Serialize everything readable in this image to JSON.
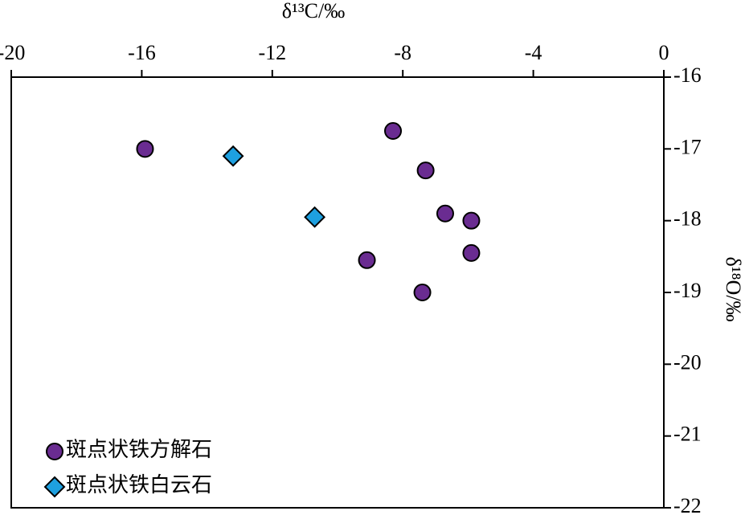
{
  "chart_data": {
    "type": "scatter",
    "x_label": "δ¹³C/‰",
    "y_label": "δ¹⁸O/‰",
    "xlim": [
      -20,
      0
    ],
    "xticks": [
      -20,
      -16,
      -12,
      -8,
      -4,
      0
    ],
    "ylim": [
      -22,
      -16
    ],
    "yticks": [
      -16,
      -17,
      -18,
      -19,
      -20,
      -21,
      -22
    ],
    "x_axis_position": "top",
    "y_axis_position": "right",
    "legend": "lower left",
    "series": [
      {
        "name": "斑点状铁方解石",
        "color": "#6a2c91",
        "marker": "circle",
        "x": [
          -15.9,
          -8.3,
          -7.3,
          -6.7,
          -5.9,
          -5.9,
          -9.1,
          -7.4
        ],
        "values": [
          -17.0,
          -16.75,
          -17.3,
          -17.9,
          -18.0,
          -18.45,
          -18.55,
          -19.0
        ]
      },
      {
        "name": "斑点状铁白云石",
        "color": "#1ea0e0",
        "marker": "diamond",
        "x": [
          -13.2,
          -10.7
        ],
        "values": [
          -17.1,
          -17.95
        ]
      }
    ]
  }
}
